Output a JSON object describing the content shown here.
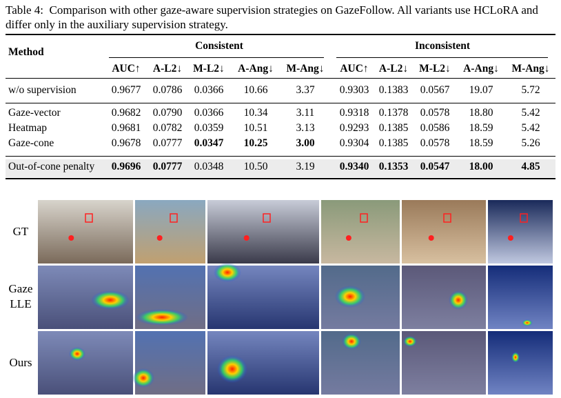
{
  "caption": {
    "label": "Table 4:",
    "text": "Comparison with other gaze-aware supervision strategies on GazeFollow. All variants use HCLoRA and differ only in the auxiliary supervision strategy."
  },
  "table": {
    "method_header": "Method",
    "groups": [
      "Consistent",
      "Inconsistent"
    ],
    "columns": [
      "AUC↑",
      "A-L2↓",
      "M-L2↓",
      "A-Ang↓",
      "M-Ang↓",
      "AUC↑",
      "A-L2↓",
      "M-L2↓",
      "A-Ang↓",
      "M-Ang↓"
    ],
    "rows": [
      {
        "method": "w/o supervision",
        "cells": [
          "0.9677",
          "0.0786",
          "0.0366",
          "10.66",
          "3.37",
          "0.9303",
          "0.1383",
          "0.0567",
          "19.07",
          "5.72"
        ],
        "bold": []
      },
      {
        "method": "Gaze-vector",
        "cells": [
          "0.9682",
          "0.0790",
          "0.0366",
          "10.34",
          "3.11",
          "0.9318",
          "0.1378",
          "0.0578",
          "18.80",
          "5.42"
        ],
        "bold": []
      },
      {
        "method": "Heatmap",
        "cells": [
          "0.9681",
          "0.0782",
          "0.0359",
          "10.51",
          "3.13",
          "0.9293",
          "0.1385",
          "0.0586",
          "18.59",
          "5.42"
        ],
        "bold": []
      },
      {
        "method": "Gaze-cone",
        "cells": [
          "0.9678",
          "0.0777",
          "0.0347",
          "10.25",
          "3.00",
          "0.9304",
          "0.1385",
          "0.0578",
          "18.59",
          "5.26"
        ],
        "bold": [
          2,
          3,
          4
        ]
      },
      {
        "method": "Out-of-cone penalty",
        "cells": [
          "0.9696",
          "0.0777",
          "0.0348",
          "10.50",
          "3.19",
          "0.9340",
          "0.1353",
          "0.0547",
          "18.00",
          "4.85"
        ],
        "bold": [
          0,
          1,
          5,
          6,
          7,
          8,
          9
        ]
      }
    ]
  },
  "figure": {
    "row_labels": [
      "GT",
      "Gaze LLE",
      "Ours"
    ]
  }
}
